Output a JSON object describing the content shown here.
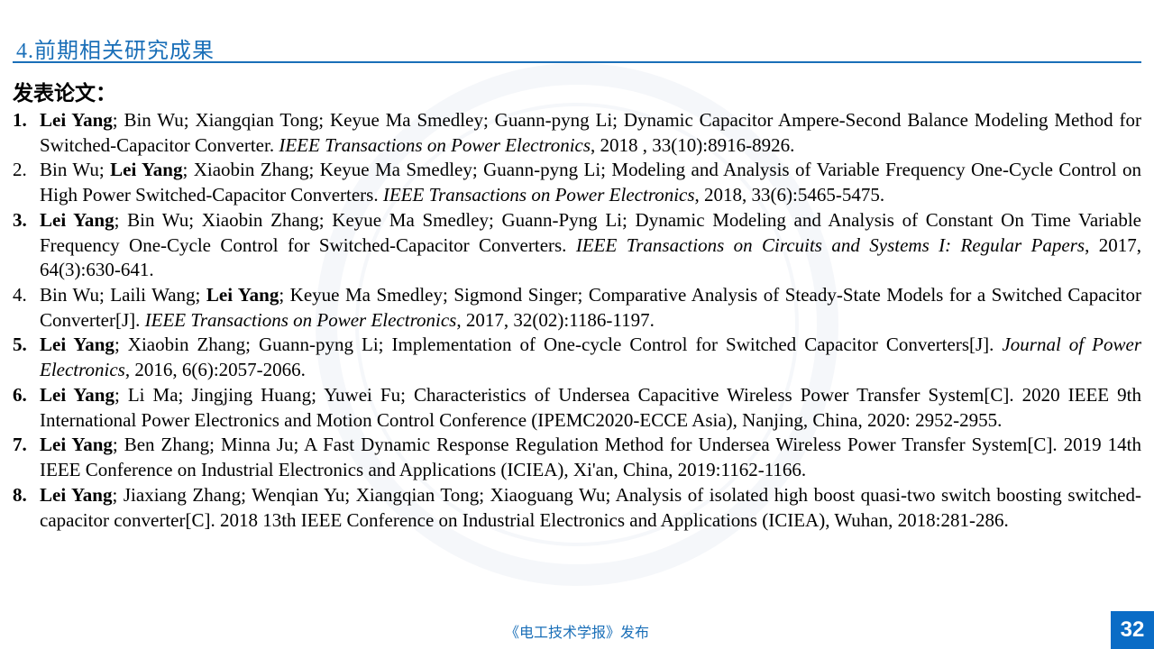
{
  "section_title": "4.前期相关研究成果",
  "subhead": "发表论文：",
  "publications": [
    {
      "num_bold": true,
      "parts": [
        {
          "t": "Lei Yang",
          "b": true
        },
        {
          "t": "; Bin Wu; Xiangqian Tong; Keyue Ma Smedley; Guann-pyng Li; Dynamic Capacitor Ampere-Second Balance Modeling Method for Switched-Capacitor Converter. "
        },
        {
          "t": "IEEE Transactions on Power Electronics",
          "i": true
        },
        {
          "t": ", 2018 , 33(10):8916-8926."
        }
      ]
    },
    {
      "num_bold": false,
      "parts": [
        {
          "t": "Bin Wu; "
        },
        {
          "t": "Lei Yang",
          "b": true
        },
        {
          "t": "; Xiaobin Zhang; Keyue Ma Smedley; Guann-pyng Li; Modeling and Analysis of Variable Frequency One-Cycle Control on High Power Switched-Capacitor Converters. "
        },
        {
          "t": "IEEE Transactions on Power Electronics",
          "i": true
        },
        {
          "t": ", 2018, 33(6):5465-5475."
        }
      ]
    },
    {
      "num_bold": true,
      "parts": [
        {
          "t": "Lei Yang",
          "b": true
        },
        {
          "t": "; Bin Wu; Xiaobin Zhang; Keyue Ma Smedley; Guann-Pyng Li; Dynamic Modeling and Analysis of Constant On Time Variable Frequency One-Cycle Control for Switched-Capacitor Converters. "
        },
        {
          "t": "IEEE Transactions on Circuits and Systems I: Regular Papers",
          "i": true
        },
        {
          "t": ", 2017, 64(3):630-641."
        }
      ]
    },
    {
      "num_bold": false,
      "parts": [
        {
          "t": "Bin Wu; Laili Wang; "
        },
        {
          "t": "Lei Yang",
          "b": true
        },
        {
          "t": "; Keyue Ma Smedley; Sigmond Singer; Comparative Analysis of Steady-State Models for a Switched Capacitor Converter[J]. "
        },
        {
          "t": "IEEE Transactions on Power Electronics",
          "i": true
        },
        {
          "t": ", 2017, 32(02):1186-1197."
        }
      ]
    },
    {
      "num_bold": true,
      "parts": [
        {
          "t": "Lei Yang",
          "b": true
        },
        {
          "t": "; Xiaobin Zhang; Guann-pyng Li; Implementation of One-cycle Control for Switched Capacitor Converters[J]. "
        },
        {
          "t": "Journal of Power Electronics",
          "i": true
        },
        {
          "t": ", 2016, 6(6):2057-2066."
        }
      ]
    },
    {
      "num_bold": true,
      "parts": [
        {
          "t": "Lei Yang",
          "b": true
        },
        {
          "t": "; Li Ma; Jingjing Huang; Yuwei Fu; Characteristics of Undersea Capacitive Wireless Power Transfer System[C]. 2020 IEEE 9th International Power Electronics and Motion Control Conference (IPEMC2020-ECCE Asia), Nanjing, China, 2020: 2952-2955."
        }
      ]
    },
    {
      "num_bold": true,
      "parts": [
        {
          "t": "Lei Yang",
          "b": true
        },
        {
          "t": "; Ben Zhang; Minna Ju; A Fast Dynamic Response Regulation Method for Undersea Wireless Power Transfer System[C]. 2019 14th IEEE Conference on Industrial Electronics and Applications (ICIEA), Xi'an, China, 2019:1162-1166."
        }
      ]
    },
    {
      "num_bold": true,
      "parts": [
        {
          "t": "Lei Yang",
          "b": true
        },
        {
          "t": "; Jiaxiang Zhang; Wenqian Yu; Xiangqian Tong; Xiaoguang Wu; Analysis of isolated high boost quasi-two switch boosting switched-capacitor converter[C]. 2018 13th IEEE Conference on Industrial Electronics and Applications (ICIEA), Wuhan, 2018:281-286."
        }
      ]
    }
  ],
  "footer": "《电工技术学报》发布",
  "page_number": "32",
  "colors": {
    "accent": "#1a6fb8",
    "pagebox": "#0a6cc6",
    "text": "#000000",
    "bg": "#ffffff"
  }
}
